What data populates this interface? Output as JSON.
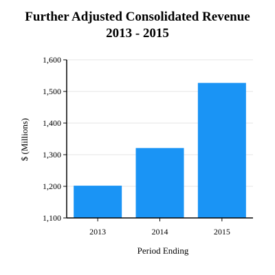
{
  "chart_data": {
    "type": "bar",
    "title": "Further Adjusted Consolidated Revenue",
    "subtitle": "2013 - 2015",
    "xlabel": "Period Ending",
    "ylabel": "$ (Millions)",
    "categories": [
      "2013",
      "2014",
      "2015"
    ],
    "values": [
      1202,
      1321,
      1527
    ],
    "ylim": [
      1100,
      1600
    ],
    "yticks": [
      1100,
      1200,
      1300,
      1400,
      1500,
      1600
    ],
    "ytick_labels": [
      "1,100",
      "1,200",
      "1,300",
      "1,400",
      "1,500",
      "1,600"
    ],
    "grid": true,
    "legend": "none",
    "colors": {
      "bar": "#1a94f5",
      "grid": "#e6e6e6",
      "axis": "#000000"
    }
  }
}
